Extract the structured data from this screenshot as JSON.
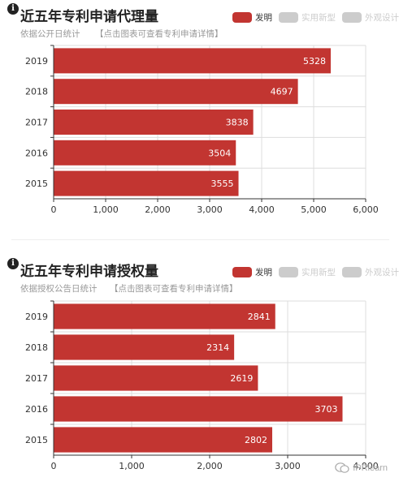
{
  "colors": {
    "bar": "#C23531",
    "legend_inactive": "#CCCCCC",
    "grid": "#DDDDDD",
    "axis": "#333333",
    "label_text": "#FFFFFF"
  },
  "legend": [
    "发明",
    "实用新型",
    "外观设计"
  ],
  "watermark": "IPRlearn",
  "panels": [
    {
      "title": "近五年专利申请代理量",
      "subtitle": "依据公开日统计",
      "link": "【点击图表可查看专利申请详情】"
    },
    {
      "title": "近五年专利申请授权量",
      "subtitle": "依据授权公告日统计",
      "link": "【点击图表可查看专利申请详情】"
    }
  ],
  "chart_data": [
    {
      "type": "bar",
      "orientation": "horizontal",
      "categories": [
        "2019",
        "2018",
        "2017",
        "2016",
        "2015"
      ],
      "series": [
        {
          "name": "发明",
          "values": [
            5328,
            4697,
            3838,
            3504,
            3555
          ]
        }
      ],
      "title": "近五年专利申请代理量",
      "xlim": [
        0,
        6000
      ],
      "xticks": [
        0,
        1000,
        2000,
        3000,
        4000,
        5000,
        6000
      ],
      "xtick_labels": [
        "0",
        "1,000",
        "2,000",
        "3,000",
        "4,000",
        "5,000",
        "6,000"
      ],
      "grid": true,
      "legend_position": "top-right"
    },
    {
      "type": "bar",
      "orientation": "horizontal",
      "categories": [
        "2019",
        "2018",
        "2017",
        "2016",
        "2015"
      ],
      "series": [
        {
          "name": "发明",
          "values": [
            2841,
            2314,
            2619,
            3703,
            2802
          ]
        }
      ],
      "title": "近五年专利申请授权量",
      "xlim": [
        0,
        4000
      ],
      "xticks": [
        0,
        1000,
        2000,
        3000,
        4000
      ],
      "xtick_labels": [
        "0",
        "1,000",
        "2,000",
        "3,000",
        "4,000"
      ],
      "grid": true,
      "legend_position": "top-right"
    }
  ]
}
